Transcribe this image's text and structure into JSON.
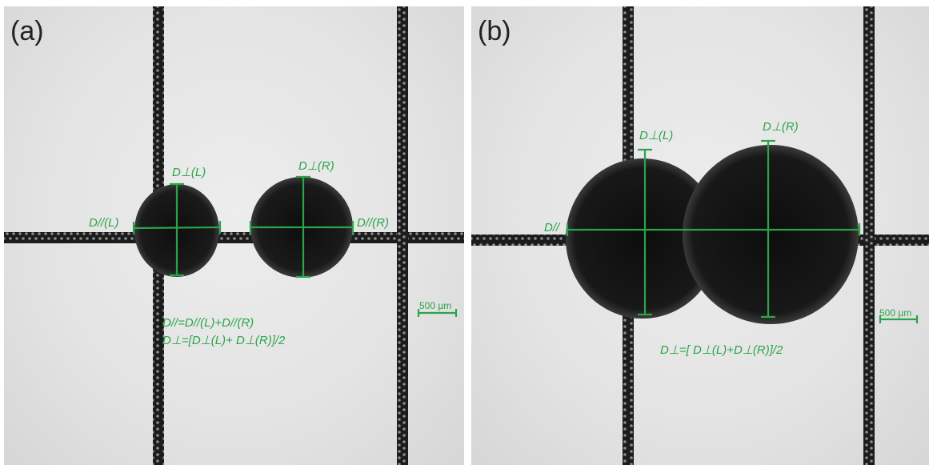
{
  "panels": [
    {
      "label": "(a)",
      "labels": {
        "dperp_left": "D⊥(L)",
        "dperp_right": "D⊥(R)",
        "dpar_left": "D//(L)",
        "dpar_right": "D//(R)"
      },
      "formula_1": "D//=D//(L)+D//(R)",
      "formula_2": "D⊥=[D⊥(L)+ D⊥(R)]/2",
      "scale_bar": "500 µm"
    },
    {
      "label": "(b)",
      "labels": {
        "dperp_left": "D⊥(L)",
        "dperp_right": "D⊥(R)",
        "dpar": "D//"
      },
      "formula_1": "D⊥=[ D⊥(L)+D⊥(R)]/2",
      "scale_bar": "500 µm"
    }
  ],
  "colors": {
    "annotation": "#2aa54a",
    "droplet": "#151515",
    "fiber": "#1a1a1a",
    "background": "#e6e6e6"
  }
}
